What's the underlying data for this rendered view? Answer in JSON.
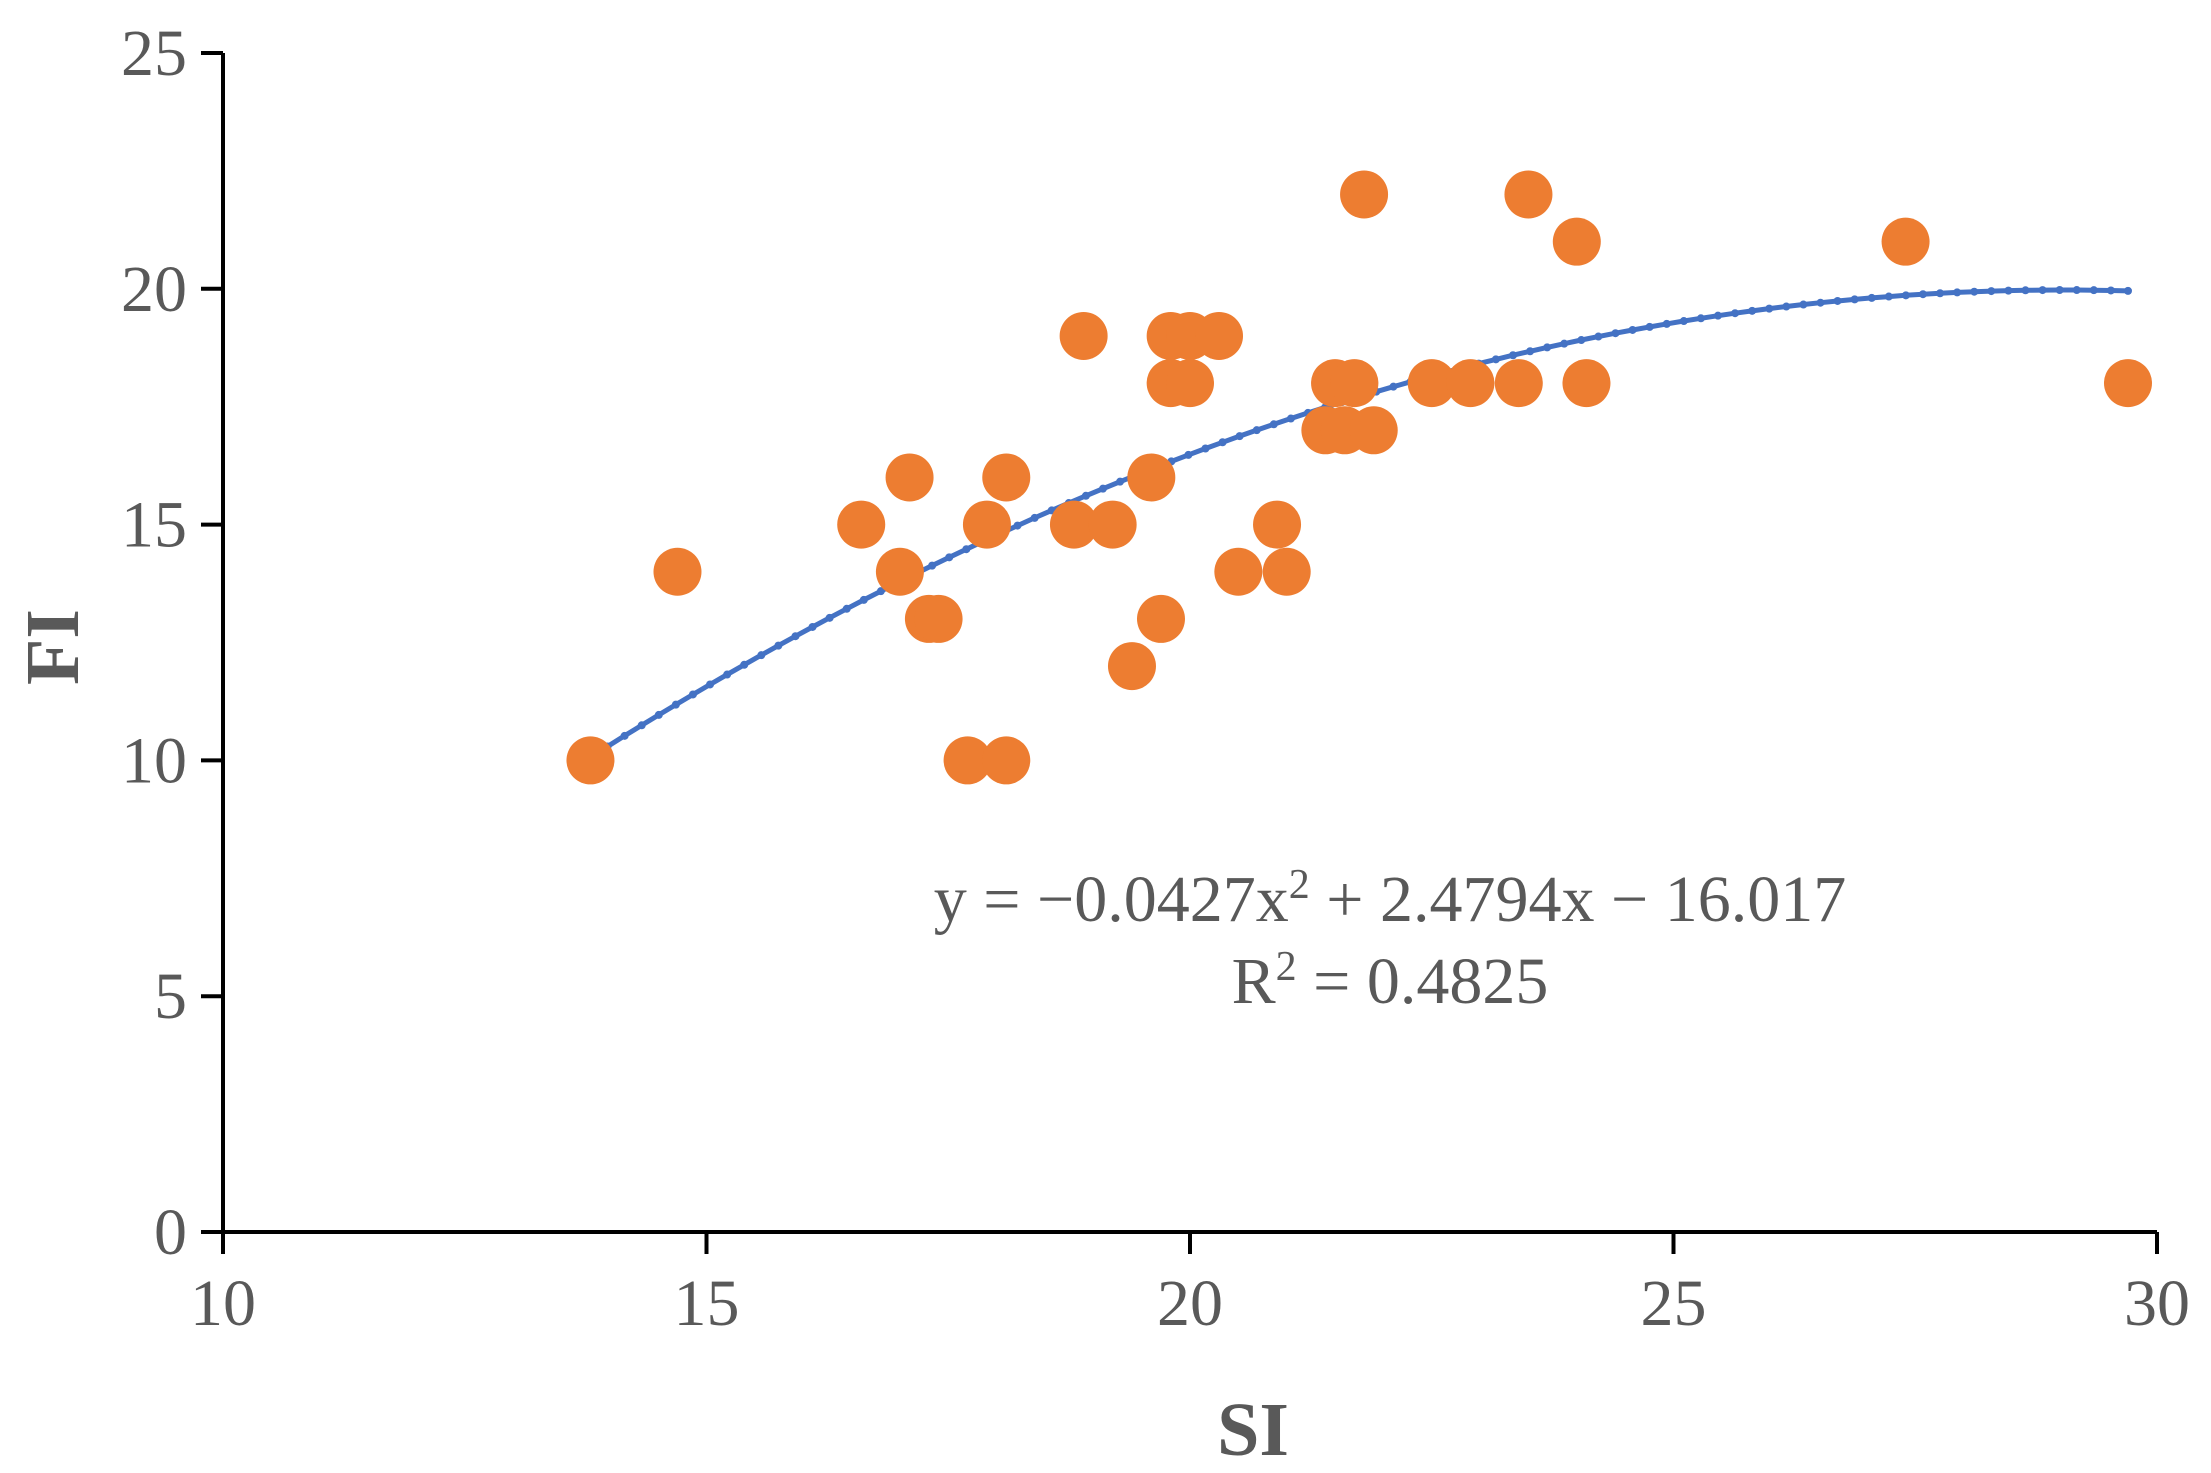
{
  "chart_data": {
    "type": "scatter",
    "xlabel": "SI",
    "ylabel": "FI",
    "xlim": [
      10,
      30
    ],
    "ylim": [
      0,
      25
    ],
    "xticks": [
      "10",
      "15",
      "20",
      "25",
      "30"
    ],
    "yticks": [
      "0",
      "5",
      "10",
      "15",
      "20",
      "25"
    ],
    "grid": false,
    "legend": "none",
    "colors": {
      "points": "#ED7D31",
      "trendline": "#4472C4",
      "axis": "#000000",
      "text": "#595959"
    },
    "points": [
      {
        "x": 13.8,
        "y": 10
      },
      {
        "x": 14.7,
        "y": 14
      },
      {
        "x": 16.6,
        "y": 15
      },
      {
        "x": 17.0,
        "y": 14
      },
      {
        "x": 17.1,
        "y": 16
      },
      {
        "x": 17.3,
        "y": 13
      },
      {
        "x": 17.4,
        "y": 13
      },
      {
        "x": 17.7,
        "y": 10
      },
      {
        "x": 17.9,
        "y": 15
      },
      {
        "x": 18.1,
        "y": 10
      },
      {
        "x": 18.1,
        "y": 16
      },
      {
        "x": 18.8,
        "y": 15
      },
      {
        "x": 18.9,
        "y": 19
      },
      {
        "x": 19.2,
        "y": 15
      },
      {
        "x": 19.4,
        "y": 12
      },
      {
        "x": 19.6,
        "y": 16
      },
      {
        "x": 19.7,
        "y": 13
      },
      {
        "x": 19.8,
        "y": 18
      },
      {
        "x": 19.8,
        "y": 19
      },
      {
        "x": 20.0,
        "y": 18
      },
      {
        "x": 20.0,
        "y": 19
      },
      {
        "x": 20.3,
        "y": 19
      },
      {
        "x": 20.5,
        "y": 14
      },
      {
        "x": 20.9,
        "y": 15
      },
      {
        "x": 21.0,
        "y": 14
      },
      {
        "x": 21.4,
        "y": 17
      },
      {
        "x": 21.5,
        "y": 18
      },
      {
        "x": 21.6,
        "y": 17
      },
      {
        "x": 21.7,
        "y": 18
      },
      {
        "x": 21.8,
        "y": 22
      },
      {
        "x": 21.9,
        "y": 17
      },
      {
        "x": 22.5,
        "y": 18
      },
      {
        "x": 22.9,
        "y": 18
      },
      {
        "x": 23.4,
        "y": 18
      },
      {
        "x": 23.5,
        "y": 22
      },
      {
        "x": 24.0,
        "y": 21
      },
      {
        "x": 24.1,
        "y": 18
      },
      {
        "x": 27.4,
        "y": 21
      },
      {
        "x": 29.7,
        "y": 18
      }
    ],
    "trendline": {
      "type": "polynomial",
      "coefficients": {
        "a": -0.0427,
        "b": 2.4794,
        "c": -16.017
      },
      "x_range": [
        13.8,
        29.7
      ]
    },
    "annotation": {
      "equation": "y = −0.0427x",
      "equation_sup": "2",
      "equation_rest": " + 2.4794x − 16.017",
      "r2_prefix": "R",
      "r2_sup": "2",
      "r2_rest": " = 0.4825"
    }
  }
}
